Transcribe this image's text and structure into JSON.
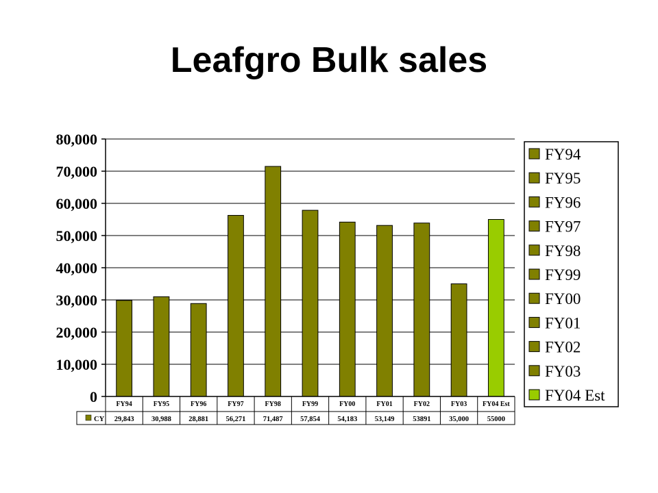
{
  "title": "Leafgro Bulk sales",
  "chart_data": {
    "type": "bar",
    "categories": [
      "FY94",
      "FY95",
      "FY96",
      "FY97",
      "FY98",
      "FY99",
      "FY00",
      "FY01",
      "FY02",
      "FY03",
      "FY04 Est"
    ],
    "values": [
      29843,
      30988,
      28881,
      56271,
      71487,
      57854,
      54183,
      53149,
      53891,
      35000,
      55000
    ],
    "yticks": [
      "0",
      "10,000",
      "20,000",
      "30,000",
      "40,000",
      "50,000",
      "60,000",
      "70,000",
      "80,000"
    ],
    "ylim": [
      0,
      80000
    ],
    "grid": true,
    "legend_position": "right",
    "legend": [
      "FY94",
      "FY95",
      "FY96",
      "FY97",
      "FY98",
      "FY99",
      "FY00",
      "FY01",
      "FY02",
      "FY03",
      "FY04 Est"
    ],
    "table": {
      "row_label": "CY",
      "cells": [
        "29,843",
        "30,988",
        "28,881",
        "56,271",
        "71,487",
        "57,854",
        "54,183",
        "53,149",
        "53891",
        "35,000",
        "55000"
      ]
    },
    "colors": {
      "bar": "#808000",
      "highlight": "#99cc00"
    },
    "highlight_index": 10
  }
}
